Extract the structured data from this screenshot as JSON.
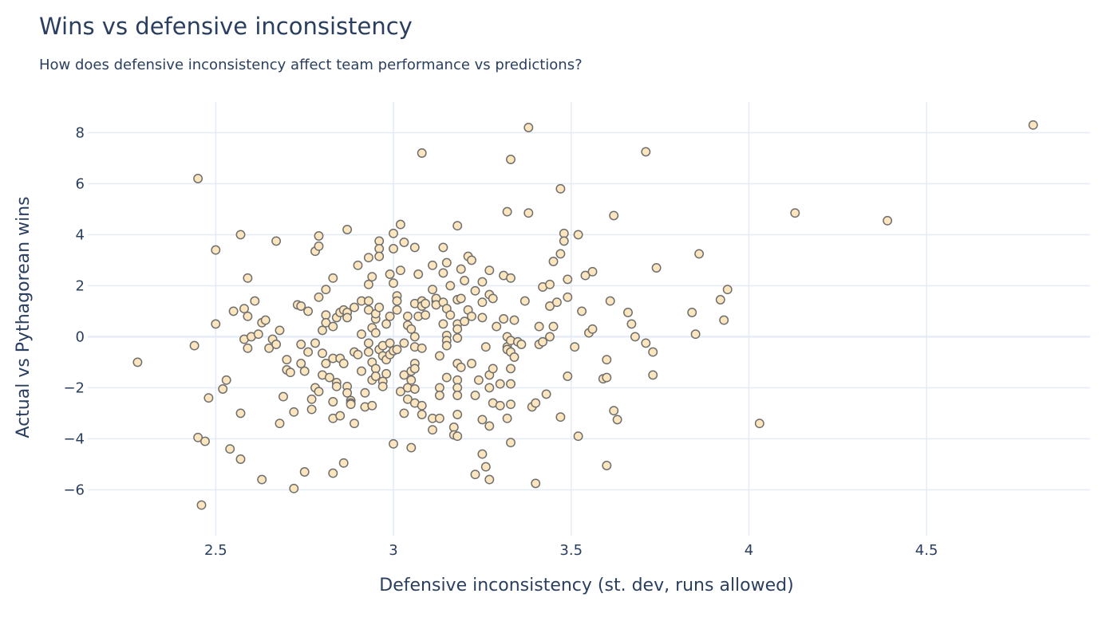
{
  "chart_data": {
    "type": "scatter",
    "title": "Wins vs defensive inconsistency",
    "subtitle": "How does defensive inconsistency affect team performance vs predictions?",
    "xlabel": "Defensive inconsistency (st. dev, runs allowed)",
    "ylabel": "Actual vs Pythagorean wins",
    "xlim": [
      2.14,
      4.96
    ],
    "ylim": [
      -7.8,
      9.2
    ],
    "x_ticks": [
      2.5,
      3,
      3.5,
      4,
      4.5
    ],
    "x_tick_labels": [
      "2.5",
      "3",
      "3.5",
      "4",
      "4.5"
    ],
    "y_ticks": [
      -6,
      -4,
      -2,
      0,
      2,
      4,
      6,
      8
    ],
    "y_tick_labels": [
      "−6",
      "−4",
      "−2",
      "0",
      "2",
      "4",
      "6",
      "8"
    ],
    "grid": true,
    "legend": false,
    "colors": {
      "marker_fill": "#fde5bd",
      "marker_stroke": "#6f6f6f",
      "grid": "#e5ecf6",
      "text": "#2a3f5f"
    },
    "points": [
      [
        2.28,
        -1.0
      ],
      [
        2.44,
        -0.35
      ],
      [
        2.45,
        6.2
      ],
      [
        2.45,
        -3.95
      ],
      [
        2.46,
        -6.6
      ],
      [
        2.47,
        -4.1
      ],
      [
        2.48,
        -2.4
      ],
      [
        2.5,
        0.5
      ],
      [
        2.5,
        3.4
      ],
      [
        2.52,
        -2.05
      ],
      [
        2.53,
        -1.7
      ],
      [
        2.54,
        -4.4
      ],
      [
        2.55,
        1.0
      ],
      [
        2.57,
        4.0
      ],
      [
        2.57,
        -3.0
      ],
      [
        2.57,
        -4.8
      ],
      [
        2.58,
        1.1
      ],
      [
        2.58,
        -0.1
      ],
      [
        2.59,
        2.3
      ],
      [
        2.59,
        0.8
      ],
      [
        2.59,
        -0.45
      ],
      [
        2.6,
        0.0
      ],
      [
        2.61,
        1.4
      ],
      [
        2.62,
        0.1
      ],
      [
        2.63,
        -5.6
      ],
      [
        2.63,
        0.55
      ],
      [
        2.64,
        0.65
      ],
      [
        2.65,
        -0.45
      ],
      [
        2.66,
        -0.1
      ],
      [
        2.67,
        3.75
      ],
      [
        2.67,
        -0.3
      ],
      [
        2.68,
        -3.4
      ],
      [
        2.68,
        0.25
      ],
      [
        2.69,
        -2.35
      ],
      [
        2.7,
        -0.9
      ],
      [
        2.7,
        -1.3
      ],
      [
        2.71,
        -1.4
      ],
      [
        2.72,
        -5.95
      ],
      [
        2.72,
        -2.95
      ],
      [
        2.73,
        1.25
      ],
      [
        2.74,
        1.2
      ],
      [
        2.74,
        -0.3
      ],
      [
        2.74,
        -1.05
      ],
      [
        2.75,
        -5.3
      ],
      [
        2.75,
        -1.35
      ],
      [
        2.76,
        1.0
      ],
      [
        2.76,
        -0.6
      ],
      [
        2.77,
        -2.45
      ],
      [
        2.77,
        -2.85
      ],
      [
        2.78,
        3.35
      ],
      [
        2.78,
        -0.25
      ],
      [
        2.78,
        -2.0
      ],
      [
        2.79,
        3.55
      ],
      [
        2.79,
        3.95
      ],
      [
        2.79,
        1.55
      ],
      [
        2.79,
        -2.15
      ],
      [
        2.8,
        0.25
      ],
      [
        2.8,
        -0.65
      ],
      [
        2.8,
        -1.5
      ],
      [
        2.81,
        1.85
      ],
      [
        2.81,
        0.85
      ],
      [
        2.81,
        0.55
      ],
      [
        2.81,
        -1.05
      ],
      [
        2.82,
        -1.6
      ],
      [
        2.83,
        2.3
      ],
      [
        2.83,
        0.4
      ],
      [
        2.83,
        -0.85
      ],
      [
        2.83,
        -2.55
      ],
      [
        2.83,
        -3.2
      ],
      [
        2.83,
        -5.35
      ],
      [
        2.84,
        0.75
      ],
      [
        2.84,
        -1.8
      ],
      [
        2.84,
        -1.95
      ],
      [
        2.85,
        0.95
      ],
      [
        2.85,
        -0.85
      ],
      [
        2.85,
        -3.1
      ],
      [
        2.86,
        1.05
      ],
      [
        2.86,
        -1.05
      ],
      [
        2.86,
        -4.95
      ],
      [
        2.87,
        0.95
      ],
      [
        2.87,
        0.75
      ],
      [
        2.87,
        -1.95
      ],
      [
        2.87,
        -2.2
      ],
      [
        2.87,
        4.2
      ],
      [
        2.88,
        -2.5
      ],
      [
        2.88,
        -2.6
      ],
      [
        2.88,
        -2.65
      ],
      [
        2.89,
        1.15
      ],
      [
        2.89,
        -0.6
      ],
      [
        2.89,
        -3.4
      ],
      [
        2.9,
        2.8
      ],
      [
        2.9,
        -0.7
      ],
      [
        2.91,
        1.4
      ],
      [
        2.91,
        0.1
      ],
      [
        2.91,
        -1.35
      ],
      [
        2.92,
        -2.2
      ],
      [
        2.92,
        -2.75
      ],
      [
        2.93,
        1.05
      ],
      [
        2.93,
        3.1
      ],
      [
        2.93,
        2.05
      ],
      [
        2.93,
        1.4
      ],
      [
        2.93,
        -0.25
      ],
      [
        2.93,
        -0.6
      ],
      [
        2.94,
        2.35
      ],
      [
        2.94,
        0.35
      ],
      [
        2.94,
        -1.0
      ],
      [
        2.94,
        -2.7
      ],
      [
        2.94,
        -1.7
      ],
      [
        2.95,
        0.7
      ],
      [
        2.95,
        0.9
      ],
      [
        2.95,
        0.15
      ],
      [
        2.95,
        -1.25
      ],
      [
        2.95,
        -1.55
      ],
      [
        2.96,
        3.75
      ],
      [
        2.96,
        3.45
      ],
      [
        2.96,
        3.15
      ],
      [
        2.96,
        1.15
      ],
      [
        2.96,
        -0.5
      ],
      [
        2.97,
        -0.35
      ],
      [
        2.97,
        -0.75
      ],
      [
        2.97,
        -1.75
      ],
      [
        2.97,
        -1.95
      ],
      [
        2.98,
        -0.9
      ],
      [
        2.98,
        0.5
      ],
      [
        2.98,
        -1.45
      ],
      [
        2.99,
        2.45
      ],
      [
        2.99,
        0.8
      ],
      [
        2.99,
        -0.25
      ],
      [
        2.99,
        -0.7
      ],
      [
        3.0,
        4.05
      ],
      [
        3.0,
        3.45
      ],
      [
        3.0,
        2.1
      ],
      [
        3.0,
        -4.2
      ],
      [
        3.0,
        -0.55
      ],
      [
        3.01,
        1.6
      ],
      [
        3.01,
        1.4
      ],
      [
        3.01,
        1.05
      ],
      [
        3.01,
        -0.5
      ],
      [
        3.02,
        4.4
      ],
      [
        3.02,
        2.6
      ],
      [
        3.02,
        -2.15
      ],
      [
        3.03,
        3.7
      ],
      [
        3.03,
        -0.25
      ],
      [
        3.03,
        -1.5
      ],
      [
        3.03,
        -3.0
      ],
      [
        3.04,
        0.8
      ],
      [
        3.04,
        0.45
      ],
      [
        3.04,
        -2.45
      ],
      [
        3.04,
        -2.0
      ],
      [
        3.05,
        -4.35
      ],
      [
        3.05,
        0.3
      ],
      [
        3.05,
        -1.35
      ],
      [
        3.05,
        -1.7
      ],
      [
        3.06,
        3.5
      ],
      [
        3.06,
        1.3
      ],
      [
        3.06,
        0.0
      ],
      [
        3.06,
        -0.4
      ],
      [
        3.06,
        -1.05
      ],
      [
        3.06,
        -1.25
      ],
      [
        3.06,
        -2.05
      ],
      [
        3.06,
        -2.6
      ],
      [
        3.07,
        2.45
      ],
      [
        3.07,
        0.8
      ],
      [
        3.08,
        7.2
      ],
      [
        3.08,
        1.4
      ],
      [
        3.08,
        1.2
      ],
      [
        3.08,
        -0.45
      ],
      [
        3.08,
        -2.7
      ],
      [
        3.08,
        -3.05
      ],
      [
        3.09,
        1.3
      ],
      [
        3.09,
        0.85
      ],
      [
        3.11,
        1.85
      ],
      [
        3.11,
        2.8
      ],
      [
        3.11,
        -3.2
      ],
      [
        3.11,
        -3.65
      ],
      [
        3.12,
        1.4
      ],
      [
        3.12,
        1.5
      ],
      [
        3.12,
        1.25
      ],
      [
        3.13,
        -0.75
      ],
      [
        3.13,
        -2.0
      ],
      [
        3.13,
        -2.3
      ],
      [
        3.13,
        -3.2
      ],
      [
        3.14,
        3.5
      ],
      [
        3.14,
        2.5
      ],
      [
        3.14,
        0.5
      ],
      [
        3.14,
        1.35
      ],
      [
        3.15,
        2.9
      ],
      [
        3.15,
        1.1
      ],
      [
        3.15,
        0.05
      ],
      [
        3.15,
        -0.15
      ],
      [
        3.15,
        -0.35
      ],
      [
        3.15,
        -1.6
      ],
      [
        3.16,
        0.85
      ],
      [
        3.16,
        2.0
      ],
      [
        3.17,
        -3.55
      ],
      [
        3.17,
        -3.85
      ],
      [
        3.18,
        4.35
      ],
      [
        3.18,
        1.45
      ],
      [
        3.18,
        0.5
      ],
      [
        3.18,
        0.3
      ],
      [
        3.18,
        -0.05
      ],
      [
        3.18,
        -1.05
      ],
      [
        3.18,
        -1.7
      ],
      [
        3.18,
        -2.0
      ],
      [
        3.18,
        -2.3
      ],
      [
        3.18,
        -3.05
      ],
      [
        3.18,
        -3.9
      ],
      [
        3.19,
        2.65
      ],
      [
        3.19,
        1.5
      ],
      [
        3.19,
        -1.2
      ],
      [
        3.2,
        2.2
      ],
      [
        3.2,
        0.6
      ],
      [
        3.21,
        1.05
      ],
      [
        3.21,
        3.15
      ],
      [
        3.22,
        3.0
      ],
      [
        3.22,
        0.8
      ],
      [
        3.22,
        -1.05
      ],
      [
        3.23,
        -5.4
      ],
      [
        3.23,
        -2.3
      ],
      [
        3.23,
        1.8
      ],
      [
        3.24,
        -1.7
      ],
      [
        3.25,
        1.35
      ],
      [
        3.25,
        2.15
      ],
      [
        3.25,
        0.75
      ],
      [
        3.25,
        -3.25
      ],
      [
        3.25,
        -4.6
      ],
      [
        3.26,
        -5.1
      ],
      [
        3.26,
        -0.4
      ],
      [
        3.27,
        -2.0
      ],
      [
        3.27,
        2.6
      ],
      [
        3.27,
        1.65
      ],
      [
        3.27,
        -1.5
      ],
      [
        3.27,
        -5.6
      ],
      [
        3.27,
        -3.5
      ],
      [
        3.28,
        1.5
      ],
      [
        3.28,
        -1.25
      ],
      [
        3.28,
        -2.6
      ],
      [
        3.29,
        0.4
      ],
      [
        3.3,
        -1.85
      ],
      [
        3.3,
        -2.7
      ],
      [
        3.31,
        2.4
      ],
      [
        3.31,
        0.7
      ],
      [
        3.32,
        4.9
      ],
      [
        3.32,
        0.0
      ],
      [
        3.32,
        -0.4
      ],
      [
        3.32,
        -0.5
      ],
      [
        3.32,
        -3.2
      ],
      [
        3.33,
        6.95
      ],
      [
        3.33,
        2.3
      ],
      [
        3.33,
        -0.15
      ],
      [
        3.33,
        -0.6
      ],
      [
        3.33,
        -1.25
      ],
      [
        3.33,
        -1.85
      ],
      [
        3.33,
        -2.65
      ],
      [
        3.33,
        -4.15
      ],
      [
        3.34,
        0.65
      ],
      [
        3.34,
        -0.8
      ],
      [
        3.35,
        -0.2
      ],
      [
        3.36,
        -0.3
      ],
      [
        3.37,
        1.4
      ],
      [
        3.38,
        8.2
      ],
      [
        3.38,
        4.85
      ],
      [
        3.39,
        -2.75
      ],
      [
        3.4,
        -2.6
      ],
      [
        3.4,
        -5.75
      ],
      [
        3.41,
        -0.3
      ],
      [
        3.41,
        0.4
      ],
      [
        3.42,
        1.95
      ],
      [
        3.42,
        -0.2
      ],
      [
        3.43,
        -2.25
      ],
      [
        3.44,
        0.0
      ],
      [
        3.44,
        1.2
      ],
      [
        3.44,
        2.05
      ],
      [
        3.45,
        0.4
      ],
      [
        3.45,
        2.95
      ],
      [
        3.46,
        1.35
      ],
      [
        3.47,
        3.25
      ],
      [
        3.47,
        5.8
      ],
      [
        3.47,
        -3.15
      ],
      [
        3.48,
        4.05
      ],
      [
        3.48,
        3.75
      ],
      [
        3.49,
        1.55
      ],
      [
        3.49,
        2.25
      ],
      [
        3.49,
        -1.55
      ],
      [
        3.51,
        -0.4
      ],
      [
        3.52,
        4.0
      ],
      [
        3.52,
        -3.9
      ],
      [
        3.53,
        1.0
      ],
      [
        3.54,
        2.4
      ],
      [
        3.55,
        0.15
      ],
      [
        3.56,
        0.3
      ],
      [
        3.56,
        2.55
      ],
      [
        3.59,
        -1.65
      ],
      [
        3.6,
        -1.6
      ],
      [
        3.6,
        -0.9
      ],
      [
        3.6,
        -5.05
      ],
      [
        3.61,
        1.4
      ],
      [
        3.62,
        -2.9
      ],
      [
        3.62,
        4.75
      ],
      [
        3.63,
        -3.25
      ],
      [
        3.66,
        0.95
      ],
      [
        3.67,
        0.5
      ],
      [
        3.68,
        0.0
      ],
      [
        3.71,
        7.25
      ],
      [
        3.71,
        -0.25
      ],
      [
        3.73,
        -1.5
      ],
      [
        3.73,
        -0.6
      ],
      [
        3.74,
        2.7
      ],
      [
        3.84,
        0.95
      ],
      [
        3.85,
        0.1
      ],
      [
        3.86,
        3.25
      ],
      [
        3.92,
        1.45
      ],
      [
        3.93,
        0.65
      ],
      [
        3.94,
        1.85
      ],
      [
        4.03,
        -3.4
      ],
      [
        4.13,
        4.85
      ],
      [
        4.39,
        4.55
      ],
      [
        4.8,
        8.3
      ]
    ]
  }
}
